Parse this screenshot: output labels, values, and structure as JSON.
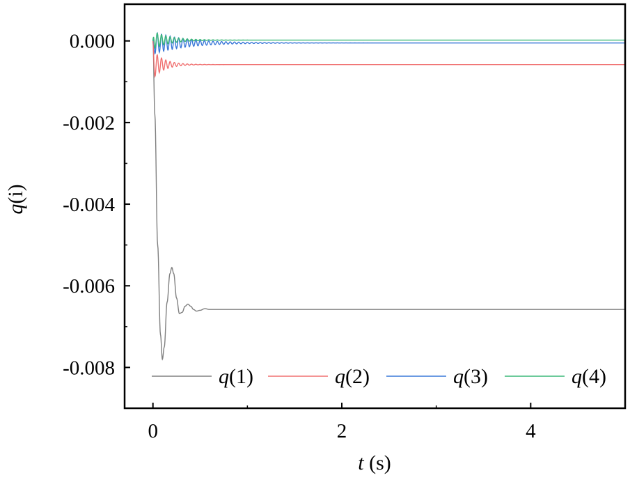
{
  "chart_data": {
    "type": "line",
    "xlabel": {
      "var": "t",
      "unit": " (s)"
    },
    "ylabel": {
      "var": "q",
      "rest": "(i)"
    },
    "xlim": [
      -0.3,
      5.0
    ],
    "ylim": [
      -0.009,
      0.0009
    ],
    "x_ticks": [
      0,
      2,
      4
    ],
    "x_tick_labels": [
      "0",
      "2",
      "4"
    ],
    "y_ticks": [
      0.0,
      -0.002,
      -0.004,
      -0.006,
      -0.008
    ],
    "y_tick_labels": [
      "0.000",
      "-0.002",
      "-0.004",
      "-0.006",
      "-0.008"
    ],
    "grid": false,
    "legend_position": "bottom",
    "series": [
      {
        "name": "q(1)",
        "name_var": "q",
        "name_idx": "(1)",
        "color": "#808080",
        "x": [
          0,
          0.02,
          0.05,
          0.08,
          0.1,
          0.12,
          0.15,
          0.18,
          0.2,
          0.22,
          0.25,
          0.28,
          0.31,
          0.34,
          0.37,
          0.4,
          0.43,
          0.46,
          0.5,
          0.55,
          0.6,
          0.7,
          1.0,
          2.0,
          3.0,
          4.0,
          5.0
        ],
        "y": [
          0.0,
          -0.0018,
          -0.005,
          -0.0072,
          -0.0078,
          -0.0075,
          -0.0064,
          -0.0057,
          -0.00555,
          -0.0057,
          -0.0063,
          -0.00668,
          -0.00665,
          -0.0065,
          -0.00645,
          -0.0065,
          -0.00658,
          -0.00662,
          -0.0066,
          -0.00656,
          -0.00658,
          -0.00658,
          -0.00658,
          -0.00658,
          -0.00658,
          -0.00658,
          -0.00658
        ]
      },
      {
        "name": "q(2)",
        "name_var": "q",
        "name_idx": "(2)",
        "color": "#f07070",
        "steady": -0.00058,
        "amp0": 0.00035,
        "tau": 0.12,
        "freq_hz": 22
      },
      {
        "name": "q(3)",
        "name_var": "q",
        "name_idx": "(3)",
        "color": "#3a78d8",
        "steady": -5e-05,
        "amp0": 0.00028,
        "tau": 0.35,
        "freq_hz": 22
      },
      {
        "name": "q(4)",
        "name_var": "q",
        "name_idx": "(4)",
        "color": "#3cb878",
        "steady": 2e-05,
        "amp0": 0.00022,
        "tau": 0.18,
        "freq_hz": 22
      }
    ]
  }
}
